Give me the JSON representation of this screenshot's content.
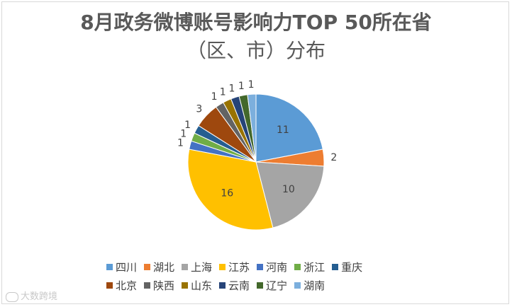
{
  "chart_data": {
    "type": "pie",
    "title_line1": "8月政务微博账号影响力TOP 50所在省",
    "title_line2": "（区、市）分布",
    "start_angle_deg": 0,
    "direction": "clockwise",
    "legend_position": "bottom",
    "slices": [
      {
        "label": "四川",
        "value": 11,
        "color": "#5b9bd5"
      },
      {
        "label": "湖北",
        "value": 2,
        "color": "#ed7d31"
      },
      {
        "label": "上海",
        "value": 10,
        "color": "#a5a5a5"
      },
      {
        "label": "江苏",
        "value": 16,
        "color": "#ffc000"
      },
      {
        "label": "河南",
        "value": 1,
        "color": "#4472c4"
      },
      {
        "label": "浙江",
        "value": 1,
        "color": "#70ad47"
      },
      {
        "label": "重庆",
        "value": 1,
        "color": "#255e91"
      },
      {
        "label": "北京",
        "value": 3,
        "color": "#9e480e"
      },
      {
        "label": "陕西",
        "value": 1,
        "color": "#636363"
      },
      {
        "label": "山东",
        "value": 1,
        "color": "#997300"
      },
      {
        "label": "云南",
        "value": 1,
        "color": "#264478"
      },
      {
        "label": "辽宁",
        "value": 1,
        "color": "#43682b"
      },
      {
        "label": "湖南",
        "value": 1,
        "color": "#7cafdd"
      }
    ]
  },
  "watermark": "大数跨境"
}
